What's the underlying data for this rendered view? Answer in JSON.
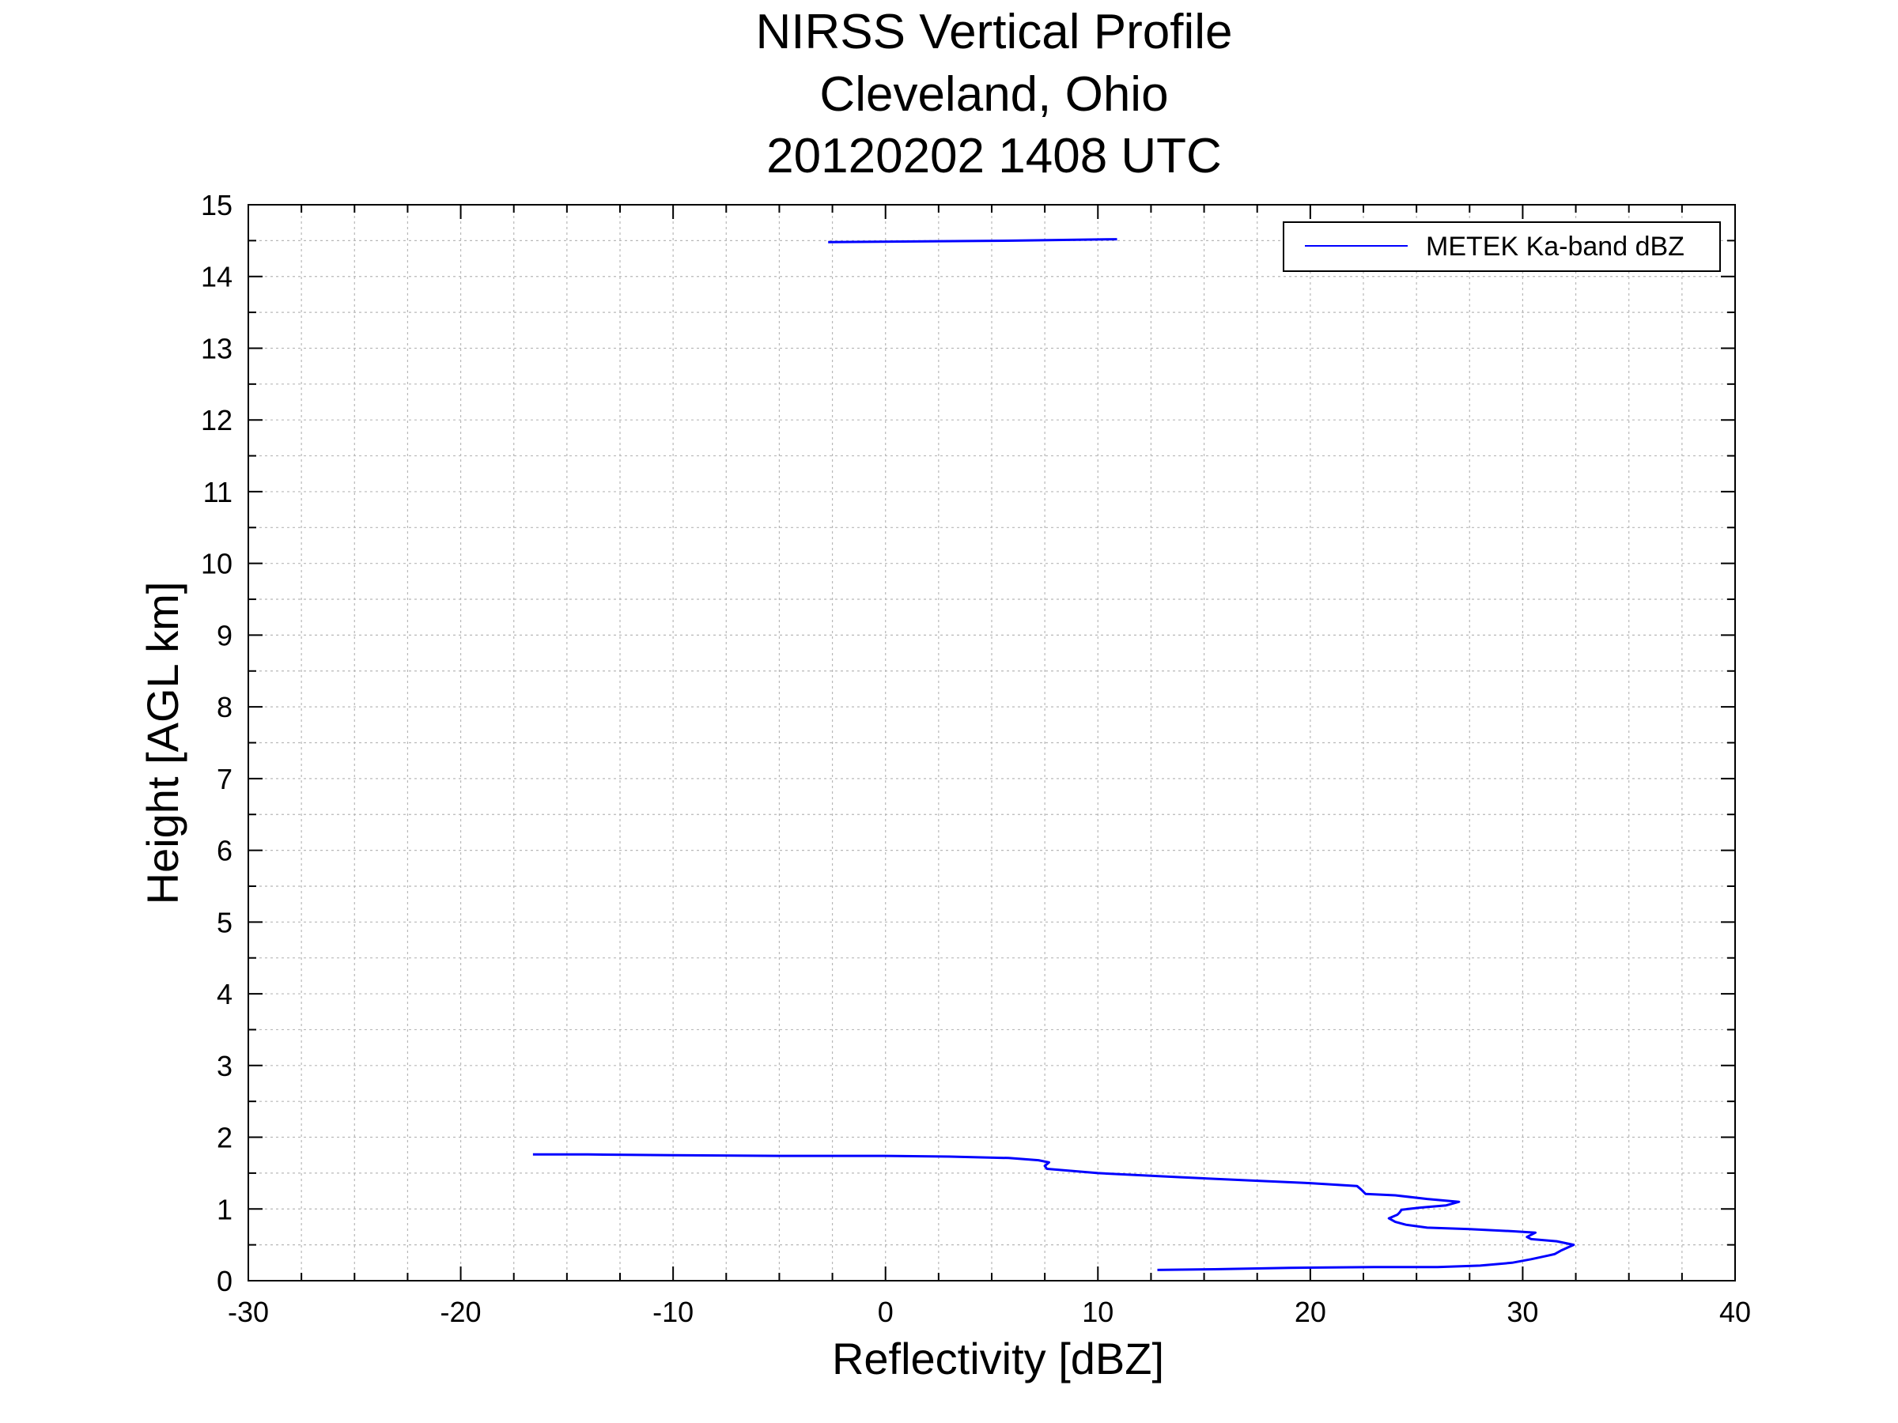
{
  "chart_data": {
    "type": "line",
    "title_lines": [
      "NIRSS Vertical Profile",
      "Cleveland, Ohio",
      "20120202 1408 UTC"
    ],
    "xlabel": "Reflectivity [dBZ]",
    "ylabel": "Height [AGL km]",
    "xlim": [
      -30,
      40
    ],
    "ylim": [
      0,
      15
    ],
    "x_ticks": [
      -30,
      -20,
      -10,
      0,
      10,
      20,
      30,
      40
    ],
    "y_ticks": [
      0,
      1,
      2,
      3,
      4,
      5,
      6,
      7,
      8,
      9,
      10,
      11,
      12,
      13,
      14,
      15
    ],
    "grid": true,
    "legend": {
      "position": "top-right",
      "entries": [
        "METEK Ka-band dBZ"
      ]
    },
    "series": [
      {
        "name": "METEK Ka-band dBZ",
        "color": "#0000ff",
        "segments": [
          [
            [
              -2.7,
              14.48
            ],
            [
              2,
              14.49
            ],
            [
              6,
              14.5
            ],
            [
              10.9,
              14.52
            ]
          ],
          [
            [
              12.8,
              0.15
            ],
            [
              15.5,
              0.16
            ],
            [
              19,
              0.18
            ],
            [
              23,
              0.19
            ],
            [
              26,
              0.19
            ],
            [
              28,
              0.21
            ],
            [
              29.5,
              0.25
            ],
            [
              30.4,
              0.3
            ],
            [
              31.2,
              0.35
            ],
            [
              31.5,
              0.37
            ],
            [
              31.8,
              0.42
            ],
            [
              32.4,
              0.5
            ],
            [
              31.6,
              0.55
            ],
            [
              30.4,
              0.58
            ],
            [
              30.2,
              0.61
            ],
            [
              30.6,
              0.67
            ],
            [
              29.5,
              0.69
            ],
            [
              27.5,
              0.72
            ],
            [
              25.5,
              0.74
            ],
            [
              24.5,
              0.78
            ],
            [
              24,
              0.82
            ],
            [
              23.7,
              0.87
            ],
            [
              24.1,
              0.92
            ],
            [
              24.2,
              0.95
            ],
            [
              24.3,
              0.99
            ],
            [
              25.2,
              1.02
            ],
            [
              26.4,
              1.05
            ],
            [
              27.0,
              1.1
            ],
            [
              25.5,
              1.14
            ],
            [
              24,
              1.19
            ],
            [
              22.6,
              1.21
            ],
            [
              22.4,
              1.27
            ],
            [
              22.2,
              1.32
            ],
            [
              20,
              1.36
            ],
            [
              17,
              1.4
            ],
            [
              14,
              1.44
            ],
            [
              10,
              1.5
            ],
            [
              7.6,
              1.56
            ],
            [
              7.5,
              1.6
            ],
            [
              7.7,
              1.65
            ],
            [
              7.2,
              1.68
            ],
            [
              5.8,
              1.71
            ],
            [
              3,
              1.73
            ],
            [
              0,
              1.74
            ],
            [
              -5,
              1.74
            ],
            [
              -10,
              1.75
            ],
            [
              -14,
              1.76
            ],
            [
              -16.6,
              1.76
            ]
          ]
        ]
      }
    ]
  }
}
